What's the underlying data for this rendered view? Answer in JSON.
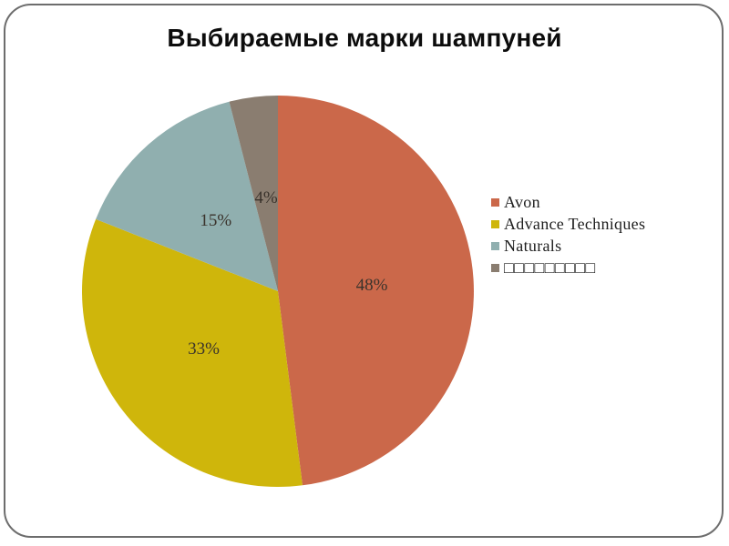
{
  "slide": {
    "background_color": "#ffffff",
    "border_color": "#6d6d6d"
  },
  "chart_data": {
    "type": "pie",
    "title": "Выбираемые марки шампуней",
    "legend_position": "right",
    "direction": "clockwise",
    "start_angle_deg": 0,
    "total": 100,
    "value_label_color": "#3a332c",
    "slices": [
      {
        "label": "Avon",
        "value": 48,
        "percent_label": "48%",
        "color": "#cb684a"
      },
      {
        "label": "Advance Techniques",
        "value": 33,
        "percent_label": "33%",
        "color": "#cfb60b"
      },
      {
        "label": "Naturals",
        "value": 15,
        "percent_label": "15%",
        "color": "#90afaf"
      },
      {
        "label": "□□□□□□□□□",
        "value": 4,
        "percent_label": "4%",
        "color": "#8a7d70"
      }
    ]
  }
}
